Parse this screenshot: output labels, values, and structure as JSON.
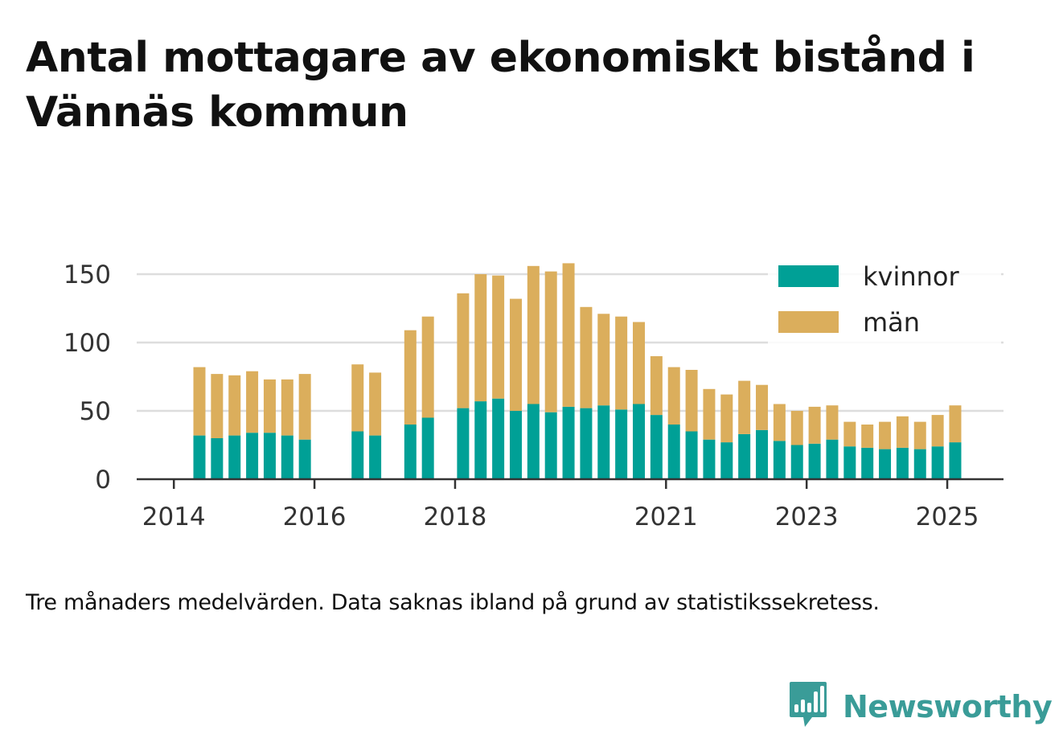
{
  "title": "Antal mottagare av ekonomiskt bistånd i Vännäs kommun",
  "note": "Tre månaders medelvärden. Data saknas ibland på grund av statistikssekretess.",
  "brand": {
    "name": "Newsworthy",
    "icon": "bar-chart-speech-bubble-icon",
    "color": "#3a9c98"
  },
  "chart_data": {
    "type": "bar",
    "stacked": true,
    "x": [
      "2014-Q2",
      "2014-Q3",
      "2014-Q4",
      "2015-Q1",
      "2015-Q2",
      "2015-Q3",
      "2015-Q4",
      "2016-Q1",
      "2016-Q2",
      "2016-Q3",
      "2016-Q4",
      "2017-Q1",
      "2017-Q2",
      "2017-Q3",
      "2017-Q4",
      "2018-Q1",
      "2018-Q2",
      "2018-Q3",
      "2018-Q4",
      "2019-Q1",
      "2019-Q2",
      "2019-Q3",
      "2019-Q4",
      "2020-Q1",
      "2020-Q2",
      "2020-Q3",
      "2020-Q4",
      "2021-Q1",
      "2021-Q2",
      "2021-Q3",
      "2021-Q4",
      "2022-Q1",
      "2022-Q2",
      "2022-Q3",
      "2022-Q4",
      "2023-Q1",
      "2023-Q2",
      "2023-Q3",
      "2023-Q4",
      "2024-Q1",
      "2024-Q2",
      "2024-Q3",
      "2024-Q4",
      "2025-Q1"
    ],
    "series": [
      {
        "name": "kvinnor",
        "color": "#00a096",
        "values": [
          32,
          30,
          32,
          34,
          34,
          32,
          29,
          null,
          null,
          35,
          32,
          null,
          40,
          45,
          null,
          52,
          57,
          59,
          50,
          55,
          49,
          53,
          52,
          54,
          51,
          55,
          47,
          40,
          35,
          29,
          27,
          33,
          36,
          28,
          25,
          26,
          29,
          24,
          23,
          22,
          23,
          22,
          24,
          27
        ]
      },
      {
        "name": "män",
        "color": "#dbae5c",
        "values": [
          50,
          47,
          44,
          45,
          39,
          41,
          48,
          null,
          null,
          49,
          46,
          null,
          69,
          74,
          null,
          84,
          93,
          90,
          82,
          101,
          103,
          105,
          74,
          67,
          68,
          60,
          43,
          42,
          45,
          37,
          35,
          39,
          33,
          27,
          25,
          27,
          25,
          18,
          17,
          20,
          23,
          20,
          23,
          27
        ]
      }
    ],
    "x_ticks": [
      "2014",
      "2016",
      "2018",
      "2021",
      "2023",
      "2025"
    ],
    "y_ticks": [
      0,
      50,
      100,
      150
    ],
    "ylim": [
      0,
      160
    ],
    "grid": true,
    "legend_position": "top-right"
  }
}
